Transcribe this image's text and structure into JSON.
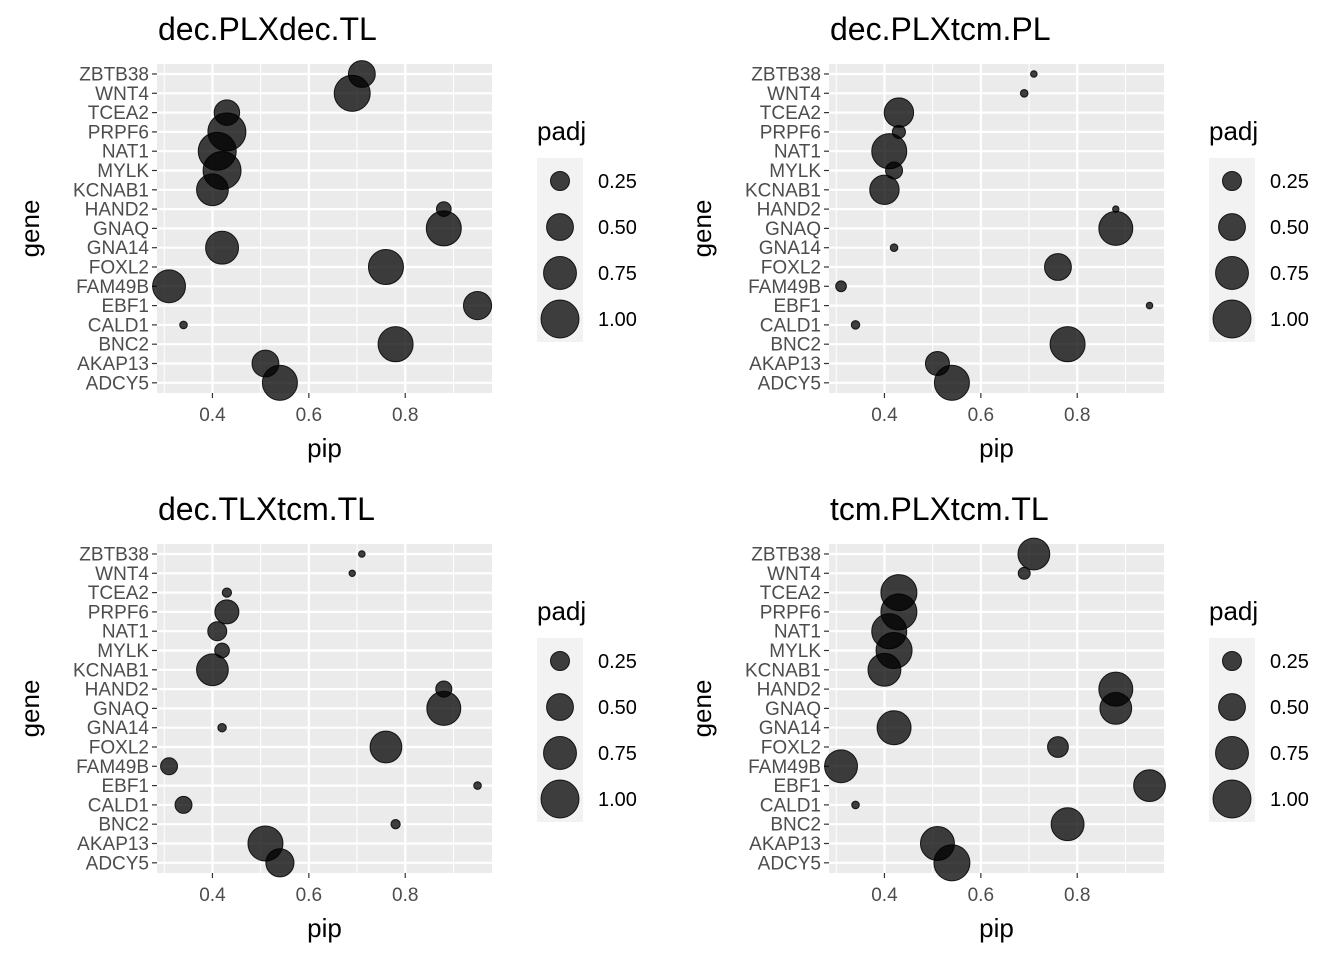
{
  "chart_data": [
    {
      "type": "scatter",
      "title": "dec.PLXdec.TL",
      "xlabel": "pip",
      "ylabel": "gene",
      "xlim": [
        0.285,
        0.98
      ],
      "xticks": [
        0.4,
        0.6,
        0.8
      ],
      "xtick_labels": [
        "0.4",
        "0.6",
        "0.8"
      ],
      "categories": [
        "ADCY5",
        "AKAP13",
        "BNC2",
        "CALD1",
        "EBF1",
        "FAM49B",
        "FOXL2",
        "GNA14",
        "GNAQ",
        "HAND2",
        "KCNAB1",
        "MYLK",
        "NAT1",
        "PRPF6",
        "TCEA2",
        "WNT4",
        "ZBTB38"
      ],
      "x": [
        0.54,
        0.51,
        0.78,
        0.34,
        0.95,
        0.31,
        0.76,
        0.42,
        0.88,
        0.88,
        0.4,
        0.42,
        0.41,
        0.43,
        0.43,
        0.69,
        0.71
      ],
      "padj": [
        0.85,
        0.5,
        0.85,
        0.04,
        0.55,
        0.75,
        0.85,
        0.75,
        0.85,
        0.15,
        0.7,
        1.0,
        1.0,
        1.0,
        0.45,
        0.9,
        0.5
      ],
      "size_variable": "padj",
      "legend": {
        "title": "padj",
        "values": [
          0.25,
          0.5,
          0.75,
          1.0
        ],
        "labels": [
          "0.25",
          "0.50",
          "0.75",
          "1.00"
        ],
        "position": "right"
      },
      "grid": true,
      "point_color": "#000000",
      "point_alpha": 0.75,
      "panel_background": "#ebebeb"
    },
    {
      "type": "scatter",
      "title": "dec.PLXtcm.PL",
      "xlabel": "pip",
      "ylabel": "gene",
      "xlim": [
        0.285,
        0.98
      ],
      "xticks": [
        0.4,
        0.6,
        0.8
      ],
      "xtick_labels": [
        "0.4",
        "0.6",
        "0.8"
      ],
      "categories": [
        "ADCY5",
        "AKAP13",
        "BNC2",
        "CALD1",
        "EBF1",
        "FAM49B",
        "FOXL2",
        "GNA14",
        "GNAQ",
        "HAND2",
        "KCNAB1",
        "MYLK",
        "NAT1",
        "PRPF6",
        "TCEA2",
        "WNT4",
        "ZBTB38"
      ],
      "x": [
        0.54,
        0.51,
        0.78,
        0.34,
        0.95,
        0.31,
        0.76,
        0.42,
        0.88,
        0.88,
        0.4,
        0.42,
        0.41,
        0.43,
        0.43,
        0.69,
        0.71
      ],
      "padj": [
        0.85,
        0.4,
        0.85,
        0.05,
        0.03,
        0.08,
        0.5,
        0.04,
        0.8,
        0.02,
        0.6,
        0.2,
        0.85,
        0.12,
        0.6,
        0.04,
        0.03
      ],
      "size_variable": "padj",
      "legend": {
        "title": "padj",
        "values": [
          0.25,
          0.5,
          0.75,
          1.0
        ],
        "labels": [
          "0.25",
          "0.50",
          "0.75",
          "1.00"
        ],
        "position": "right"
      },
      "grid": true,
      "point_color": "#000000",
      "point_alpha": 0.75,
      "panel_background": "#ebebeb"
    },
    {
      "type": "scatter",
      "title": "dec.TLXtcm.TL",
      "xlabel": "pip",
      "ylabel": "gene",
      "xlim": [
        0.285,
        0.98
      ],
      "xticks": [
        0.4,
        0.6,
        0.8
      ],
      "xtick_labels": [
        "0.4",
        "0.6",
        "0.8"
      ],
      "categories": [
        "ADCY5",
        "AKAP13",
        "BNC2",
        "CALD1",
        "EBF1",
        "FAM49B",
        "FOXL2",
        "GNA14",
        "GNAQ",
        "HAND2",
        "KCNAB1",
        "MYLK",
        "NAT1",
        "PRPF6",
        "TCEA2",
        "WNT4",
        "ZBTB38"
      ],
      "x": [
        0.54,
        0.51,
        0.78,
        0.34,
        0.95,
        0.31,
        0.76,
        0.42,
        0.88,
        0.88,
        0.4,
        0.42,
        0.41,
        0.43,
        0.43,
        0.69,
        0.71
      ],
      "padj": [
        0.55,
        0.85,
        0.06,
        0.2,
        0.04,
        0.2,
        0.7,
        0.05,
        0.8,
        0.18,
        0.7,
        0.15,
        0.25,
        0.4,
        0.06,
        0.02,
        0.03
      ],
      "size_variable": "padj",
      "legend": {
        "title": "padj",
        "values": [
          0.25,
          0.5,
          0.75,
          1.0
        ],
        "labels": [
          "0.25",
          "0.50",
          "0.75",
          "1.00"
        ],
        "position": "right"
      },
      "grid": true,
      "point_color": "#000000",
      "point_alpha": 0.75,
      "panel_background": "#ebebeb"
    },
    {
      "type": "scatter",
      "title": "tcm.PLXtcm.TL",
      "xlabel": "pip",
      "ylabel": "gene",
      "xlim": [
        0.285,
        0.98
      ],
      "xticks": [
        0.4,
        0.6,
        0.8
      ],
      "xtick_labels": [
        "0.4",
        "0.6",
        "0.8"
      ],
      "categories": [
        "ADCY5",
        "AKAP13",
        "BNC2",
        "CALD1",
        "EBF1",
        "FAM49B",
        "FOXL2",
        "GNA14",
        "GNAQ",
        "HAND2",
        "KCNAB1",
        "MYLK",
        "NAT1",
        "PRPF6",
        "TCEA2",
        "WNT4",
        "ZBTB38"
      ],
      "x": [
        0.54,
        0.51,
        0.78,
        0.34,
        0.95,
        0.31,
        0.76,
        0.42,
        0.88,
        0.88,
        0.4,
        0.42,
        0.41,
        0.43,
        0.43,
        0.69,
        0.71
      ],
      "padj": [
        0.9,
        0.8,
        0.75,
        0.04,
        0.7,
        0.75,
        0.3,
        0.8,
        0.7,
        0.8,
        0.75,
        0.9,
        0.85,
        0.9,
        0.9,
        0.1,
        0.7
      ],
      "size_variable": "padj",
      "legend": {
        "title": "padj",
        "values": [
          0.25,
          0.5,
          0.75,
          1.0
        ],
        "labels": [
          "0.25",
          "0.50",
          "0.75",
          "1.00"
        ],
        "position": "right"
      },
      "grid": true,
      "point_color": "#000000",
      "point_alpha": 0.75,
      "panel_background": "#ebebeb"
    }
  ]
}
